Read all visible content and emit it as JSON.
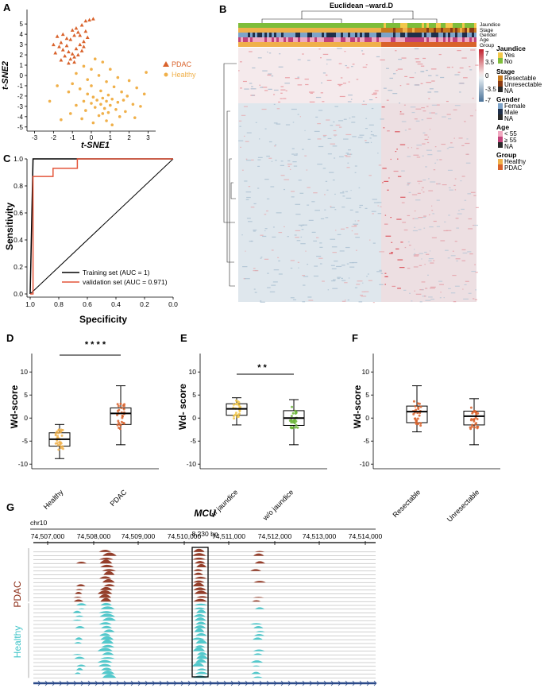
{
  "colors": {
    "pdac": "#d9622b",
    "healthy": "#f0b04a",
    "jaundice_yes": "#f2c84b",
    "jaundice_no": "#7ebd3a",
    "resectable": "#c8791e",
    "unresectable": "#8a3a12",
    "stage_na": "#2a2a2a",
    "female": "#7da3c9",
    "male": "#1f2f4a",
    "age_lt55": "#f0a8c0",
    "age_ge55": "#c2427a",
    "heat_high": "#d7303a",
    "heat_low": "#5a82a6",
    "training": "#000000",
    "validation": "#e4553a",
    "track_pdac": "#8b2a14",
    "track_healthy": "#40c4c8",
    "green_box": "#6cb63a"
  },
  "panels": {
    "A": {
      "letter": "A",
      "chart_data": {
        "type": "scatter",
        "xlabel": "t-SNE1",
        "ylabel": "t-SNE2",
        "xlim": [
          -3.4,
          3.4
        ],
        "ylim": [
          -5.4,
          6.4
        ],
        "xticks": [
          "-3",
          "-2",
          "-1",
          "0",
          "1",
          "2",
          "3"
        ],
        "xtick_values": [
          -3,
          -2,
          -1,
          0,
          1,
          2,
          3
        ],
        "yticks": [
          "5",
          "4",
          "3",
          "2",
          "1",
          "0",
          "-1",
          "-2",
          "-3",
          "-4",
          "-5"
        ],
        "ytick_values": [
          5,
          4,
          3,
          2,
          1,
          0,
          -1,
          -2,
          -3,
          -4,
          -5
        ],
        "legend": [
          "PDAC",
          "Healthy"
        ],
        "legend_position": "right",
        "series": [
          {
            "name": "PDAC",
            "marker": "triangle",
            "points": [
              [
                -1.8,
                3.8
              ],
              [
                -1.6,
                3.2
              ],
              [
                -1.3,
                2.9
              ],
              [
                -1.1,
                3.5
              ],
              [
                -0.9,
                3.9
              ],
              [
                -0.7,
                4.2
              ],
              [
                -0.5,
                4.9
              ],
              [
                -0.3,
                5.3
              ],
              [
                -0.1,
                5.4
              ],
              [
                0.1,
                5.5
              ],
              [
                -1.5,
                2.5
              ],
              [
                -1.2,
                2.3
              ],
              [
                -1.0,
                2.1
              ],
              [
                -0.8,
                2.6
              ],
              [
                -0.6,
                3.0
              ],
              [
                -0.4,
                3.3
              ],
              [
                -0.2,
                3.7
              ],
              [
                -1.4,
                1.9
              ],
              [
                -1.1,
                1.6
              ],
              [
                -0.9,
                1.8
              ],
              [
                -0.7,
                2.0
              ],
              [
                -0.5,
                2.4
              ],
              [
                -1.7,
                2.8
              ],
              [
                -1.9,
                2.2
              ],
              [
                -1.3,
                3.6
              ],
              [
                -1.0,
                4.4
              ],
              [
                -0.8,
                4.6
              ],
              [
                -0.6,
                3.9
              ],
              [
                -0.4,
                2.8
              ],
              [
                -1.2,
                1.2
              ],
              [
                -0.9,
                1.3
              ],
              [
                -1.6,
                1.5
              ],
              [
                -2.0,
                3.0
              ],
              [
                -1.5,
                4.0
              ],
              [
                -0.3,
                4.3
              ]
            ]
          },
          {
            "name": "Healthy",
            "marker": "circle",
            "points": [
              [
                0.2,
                1.6
              ],
              [
                0.6,
                1.3
              ],
              [
                -0.4,
                0.9
              ],
              [
                1.0,
                0.6
              ],
              [
                -0.8,
                0.2
              ],
              [
                0.4,
                0.0
              ],
              [
                1.4,
                -0.2
              ],
              [
                -0.2,
                -0.4
              ],
              [
                0.8,
                -0.6
              ],
              [
                2.0,
                -0.5
              ],
              [
                -1.0,
                -0.8
              ],
              [
                0.0,
                -1.0
              ],
              [
                1.2,
                -1.1
              ],
              [
                2.4,
                -1.2
              ],
              [
                -0.6,
                -1.3
              ],
              [
                0.5,
                -1.5
              ],
              [
                1.6,
                -1.6
              ],
              [
                2.8,
                -1.8
              ],
              [
                -1.2,
                -1.6
              ],
              [
                -0.2,
                -1.8
              ],
              [
                0.9,
                -1.9
              ],
              [
                1.9,
                -2.0
              ],
              [
                0.1,
                -2.1
              ],
              [
                0.6,
                -2.2
              ],
              [
                1.1,
                -2.3
              ],
              [
                0.3,
                -2.4
              ],
              [
                0.8,
                -2.5
              ],
              [
                -0.4,
                -2.5
              ],
              [
                1.4,
                -2.6
              ],
              [
                0.0,
                -2.7
              ],
              [
                0.5,
                -2.8
              ],
              [
                1.0,
                -2.9
              ],
              [
                -0.8,
                -2.9
              ],
              [
                2.2,
                -2.8
              ],
              [
                0.2,
                -3.1
              ],
              [
                0.7,
                -3.2
              ],
              [
                1.3,
                -3.3
              ],
              [
                -0.3,
                -3.4
              ],
              [
                0.9,
                -3.6
              ],
              [
                1.8,
                -3.5
              ],
              [
                -1.1,
                -3.7
              ],
              [
                0.4,
                -3.9
              ],
              [
                1.5,
                -4.0
              ],
              [
                -0.5,
                -4.2
              ],
              [
                0.8,
                -4.4
              ],
              [
                2.3,
                -4.1
              ],
              [
                -1.6,
                -4.3
              ],
              [
                0.1,
                -4.6
              ],
              [
                1.1,
                -4.8
              ],
              [
                2.6,
                -3.0
              ],
              [
                -2.2,
                -2.5
              ],
              [
                -1.8,
                -1.0
              ],
              [
                2.9,
                0.3
              ],
              [
                0.0,
                0.6
              ],
              [
                0.6,
                -3.7
              ],
              [
                1.7,
                -2.4
              ]
            ]
          }
        ]
      }
    },
    "B": {
      "letter": "B",
      "title": "Euclidean –ward.D",
      "annotation_rows": [
        "Jaundice",
        "Stage",
        "Gender",
        "Age",
        "Group"
      ],
      "scale": {
        "max": "7",
        "t1": "3.5",
        "mid": "0",
        "t3": "-3.5",
        "min": "-7"
      },
      "legend": {
        "jaundice": {
          "title": "Jaundice",
          "items": [
            "Yes",
            "No"
          ]
        },
        "stage": {
          "title": "Stage",
          "items": [
            "Resectable",
            "Unresectable",
            "NA"
          ]
        },
        "gender": {
          "title": "Gender",
          "items": [
            "Female",
            "Male",
            "NA"
          ]
        },
        "age": {
          "title": "Age",
          "items": [
            "< 55",
            "≥ 55",
            "NA"
          ]
        },
        "group": {
          "title": "Group",
          "items": [
            "Healthy",
            "PDAC"
          ]
        }
      }
    },
    "C": {
      "letter": "C",
      "chart_data": {
        "type": "line",
        "xlabel": "Specificity",
        "ylabel": "Sensitivity",
        "xlim": [
          1.0,
          0.0
        ],
        "ylim": [
          0.0,
          1.0
        ],
        "xticks": [
          "1.0",
          "0.8",
          "0.6",
          "0.4",
          "0.2",
          "0.0"
        ],
        "xtick_values": [
          1.0,
          0.8,
          0.6,
          0.4,
          0.2,
          0.0
        ],
        "yticks": [
          "1.0",
          "0.8",
          "0.6",
          "0.4",
          "0.2",
          "0.0"
        ],
        "ytick_values": [
          1.0,
          0.8,
          0.6,
          0.4,
          0.2,
          0.0
        ],
        "legend_position": "bottom-right",
        "series": [
          {
            "name": "Training set (AUC = 1)",
            "x": [
              1.0,
              0.98,
              0.86,
              0.86,
              0.0
            ],
            "y": [
              0.0,
              1.0,
              1.0,
              1.0,
              1.0
            ]
          },
          {
            "name": "validation set (AUC = 0.971)",
            "x": [
              1.0,
              0.98,
              0.98,
              0.84,
              0.84,
              0.67,
              0.67,
              0.0
            ],
            "y": [
              0.0,
              0.0,
              0.87,
              0.87,
              0.93,
              0.93,
              1.0,
              1.0
            ]
          }
        ],
        "diagonal": {
          "x": [
            1.0,
            0.0
          ],
          "y": [
            0.0,
            1.0
          ]
        }
      }
    },
    "D": {
      "letter": "D",
      "chart_data": {
        "type": "box",
        "ylabel": "Wd-score",
        "ylim": [
          -11,
          14
        ],
        "yticks": [
          "10",
          "5",
          "0",
          "-5",
          "-10"
        ],
        "ytick_values": [
          10,
          5,
          0,
          -5,
          -10
        ],
        "categories": [
          "Healthy",
          "PDAC"
        ],
        "boxes": [
          {
            "name": "Healthy",
            "min": -8.8,
            "q1": -6.1,
            "median": -4.6,
            "q3": -3.2,
            "max": -1.4
          },
          {
            "name": "PDAC",
            "min": -5.8,
            "q1": -1.4,
            "median": 1.0,
            "q3": 2.2,
            "max": 7.0
          }
        ],
        "significance": "* * * *"
      }
    },
    "E": {
      "letter": "E",
      "chart_data": {
        "type": "box",
        "ylabel": "Wd- score",
        "ylim": [
          -11,
          14
        ],
        "yticks": [
          "10",
          "5",
          "0",
          "-5",
          "-10"
        ],
        "ytick_values": [
          10,
          5,
          0,
          -5,
          -10
        ],
        "categories": [
          "w/ jaundice",
          "w/o jaundice"
        ],
        "boxes": [
          {
            "name": "w/ jaundice",
            "min": -1.5,
            "q1": 0.6,
            "median": 2.0,
            "q3": 3.1,
            "max": 4.4
          },
          {
            "name": "w/o jaundice",
            "min": -5.8,
            "q1": -1.6,
            "median": 0.0,
            "q3": 1.6,
            "max": 4.0
          }
        ],
        "significance": "* *"
      }
    },
    "F": {
      "letter": "F",
      "chart_data": {
        "type": "box",
        "ylabel": "Wd-score",
        "ylim": [
          -11,
          14
        ],
        "yticks": [
          "10",
          "5",
          "0",
          "-5",
          "-10"
        ],
        "ytick_values": [
          10,
          5,
          0,
          -5,
          -10
        ],
        "categories": [
          "Resectable",
          "Unresectable"
        ],
        "boxes": [
          {
            "name": "Resectable",
            "min": -3.0,
            "q1": -1.0,
            "median": 1.4,
            "q3": 2.6,
            "max": 7.0
          },
          {
            "name": "Unresectable",
            "min": -5.8,
            "q1": -1.5,
            "median": 0.4,
            "q3": 1.5,
            "max": 4.2
          }
        ]
      }
    },
    "G": {
      "letter": "G",
      "gene": "MCU",
      "chrom": "chr10",
      "span_label": "8,230 bp",
      "coords": [
        "74,507,000",
        "74,508,000",
        "74,509,000",
        "74,510,000",
        "74,511,000",
        "74,512,000",
        "74,513,000",
        "74,514,000"
      ],
      "group_labels": [
        "PDAC",
        "Healthy"
      ],
      "pdac_tracks": 14,
      "healthy_tracks": 20
    }
  }
}
